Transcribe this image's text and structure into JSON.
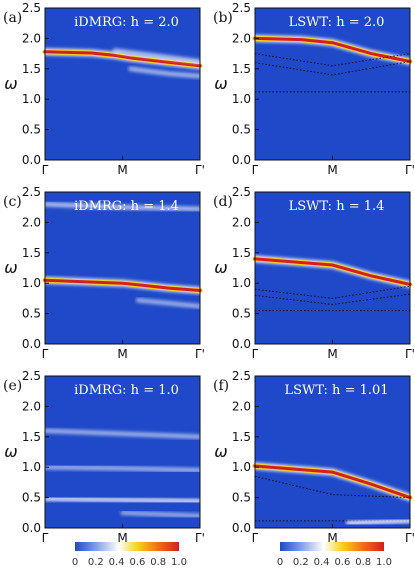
{
  "chart_data": {
    "type": "heatmap",
    "ylabel": "ω",
    "ylim": [
      0,
      2.5
    ],
    "yticks": [
      "0.0",
      "0.5",
      "1.0",
      "1.5",
      "2.0",
      "2.5"
    ],
    "xticks": [
      "Γ",
      "M",
      "Γ'"
    ],
    "colorbar": {
      "ticks": [
        "0",
        "0.2",
        "0.4",
        "0.6",
        "0.8",
        "1.0"
      ],
      "colors": [
        "#1f49c8",
        "#ffffff",
        "#f5d21b",
        "#d21f23"
      ]
    },
    "panels": [
      {
        "letter": "(a)",
        "title": "iDMRG: h = 2.0",
        "bands": [
          {
            "name": "main",
            "omega": [
              [
                0,
                1.78
              ],
              [
                0.3,
                1.76
              ],
              [
                0.45,
                1.72
              ],
              [
                0.55,
                1.68
              ],
              [
                0.75,
                1.62
              ],
              [
                1,
                1.55
              ]
            ],
            "intensity": 1.0
          },
          {
            "name": "upper",
            "omega": [
              [
                0.45,
                1.8
              ],
              [
                0.7,
                1.72
              ],
              [
                1,
                1.62
              ]
            ],
            "intensity": 0.25
          },
          {
            "name": "lower",
            "omega": [
              [
                0.55,
                1.5
              ],
              [
                0.8,
                1.42
              ],
              [
                1,
                1.38
              ]
            ],
            "intensity": 0.2
          }
        ]
      },
      {
        "letter": "(b)",
        "title": "LSWT: h = 2.0",
        "bands": [
          {
            "name": "main",
            "omega": [
              [
                0,
                2.0
              ],
              [
                0.3,
                1.98
              ],
              [
                0.5,
                1.93
              ],
              [
                0.75,
                1.75
              ],
              [
                1,
                1.62
              ]
            ],
            "intensity": 1.0
          },
          {
            "name": "upper",
            "omega": [
              [
                0.45,
                1.92
              ],
              [
                0.7,
                1.92
              ],
              [
                1,
                1.92
              ]
            ],
            "intensity": 0.3
          },
          {
            "name": "dotted1",
            "omega": [
              [
                0,
                1.75
              ],
              [
                0.5,
                1.55
              ],
              [
                1,
                1.75
              ]
            ],
            "intensity": 0.0
          },
          {
            "name": "dotted2",
            "omega": [
              [
                0,
                1.6
              ],
              [
                0.5,
                1.4
              ],
              [
                1,
                1.62
              ]
            ],
            "intensity": 0.0
          },
          {
            "name": "dotted3",
            "omega": [
              [
                0,
                1.12
              ],
              [
                1,
                1.12
              ]
            ],
            "intensity": 0.0
          }
        ]
      },
      {
        "letter": "(c)",
        "title": "iDMRG: h = 1.4",
        "bands": [
          {
            "name": "top",
            "omega": [
              [
                0,
                2.3
              ],
              [
                0.5,
                2.25
              ],
              [
                1,
                2.22
              ]
            ],
            "intensity": 0.3
          },
          {
            "name": "main",
            "omega": [
              [
                0,
                1.05
              ],
              [
                0.5,
                1.0
              ],
              [
                0.8,
                0.92
              ],
              [
                1,
                0.88
              ]
            ],
            "intensity": 1.0
          },
          {
            "name": "low",
            "omega": [
              [
                0.6,
                0.72
              ],
              [
                1,
                0.62
              ]
            ],
            "intensity": 0.15
          }
        ]
      },
      {
        "letter": "(d)",
        "title": "LSWT: h = 1.4",
        "bands": [
          {
            "name": "main",
            "omega": [
              [
                0,
                1.4
              ],
              [
                0.5,
                1.3
              ],
              [
                0.75,
                1.12
              ],
              [
                1,
                0.98
              ]
            ],
            "intensity": 1.0
          },
          {
            "name": "dotted1",
            "omega": [
              [
                0,
                0.9
              ],
              [
                0.5,
                0.75
              ],
              [
                1,
                0.95
              ]
            ],
            "intensity": 0.0
          },
          {
            "name": "dotted2",
            "omega": [
              [
                0,
                0.8
              ],
              [
                0.5,
                0.65
              ],
              [
                1,
                0.82
              ]
            ],
            "intensity": 0.0
          },
          {
            "name": "dotted3",
            "omega": [
              [
                0,
                0.55
              ],
              [
                1,
                0.55
              ]
            ],
            "intensity": 0.0
          }
        ]
      },
      {
        "letter": "(e)",
        "title": "iDMRG: h = 1.0",
        "bands": [
          {
            "name": "top",
            "omega": [
              [
                0,
                1.6
              ],
              [
                0.5,
                1.55
              ],
              [
                1,
                1.5
              ]
            ],
            "intensity": 0.15
          },
          {
            "name": "mid",
            "omega": [
              [
                0,
                1.0
              ],
              [
                0.5,
                0.98
              ],
              [
                1,
                0.95
              ]
            ],
            "intensity": 0.15
          },
          {
            "name": "main",
            "omega": [
              [
                0,
                0.48
              ],
              [
                0.5,
                0.46
              ],
              [
                1,
                0.44
              ]
            ],
            "intensity": 0.5
          },
          {
            "name": "low",
            "omega": [
              [
                0.5,
                0.25
              ],
              [
                1,
                0.2
              ]
            ],
            "intensity": 0.1
          }
        ]
      },
      {
        "letter": "(f)",
        "title": "LSWT: h = 1.01",
        "bands": [
          {
            "name": "main",
            "omega": [
              [
                0,
                1.02
              ],
              [
                0.5,
                0.92
              ],
              [
                0.75,
                0.72
              ],
              [
                1,
                0.5
              ]
            ],
            "intensity": 1.0
          },
          {
            "name": "dotted1",
            "omega": [
              [
                0,
                0.85
              ],
              [
                0.5,
                0.55
              ],
              [
                1,
                0.5
              ]
            ],
            "intensity": 0.0
          },
          {
            "name": "dotted2",
            "omega": [
              [
                0,
                0.12
              ],
              [
                1,
                0.12
              ]
            ],
            "intensity": 0.0
          },
          {
            "name": "bottom",
            "omega": [
              [
                0.6,
                0.08
              ],
              [
                1,
                0.12
              ]
            ],
            "intensity": 0.6
          }
        ]
      }
    ]
  }
}
